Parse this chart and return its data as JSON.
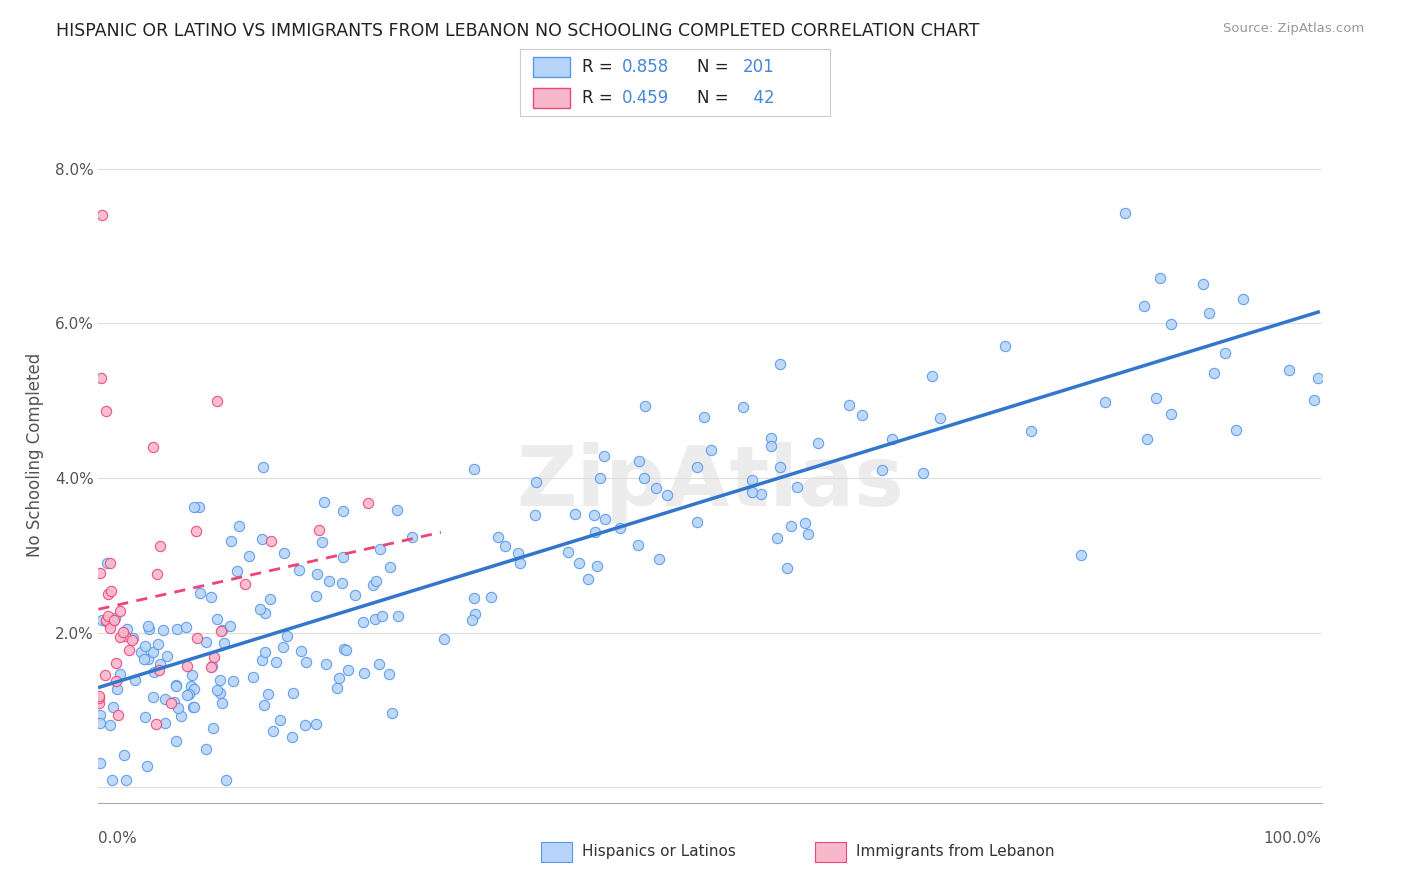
{
  "title": "HISPANIC OR LATINO VS IMMIGRANTS FROM LEBANON NO SCHOOLING COMPLETED CORRELATION CHART",
  "source": "Source: ZipAtlas.com",
  "ylabel": "No Schooling Completed",
  "ytick_vals": [
    0.0,
    0.02,
    0.04,
    0.06,
    0.08
  ],
  "ytick_labels": [
    "",
    "2.0%",
    "4.0%",
    "6.0%",
    "8.0%"
  ],
  "xlim": [
    0.0,
    1.0
  ],
  "ylim": [
    -0.002,
    0.088
  ],
  "series1": {
    "name": "Hispanics or Latinos",
    "R": 0.858,
    "N": 201,
    "fill_color": "#b8d4f8",
    "edge_color": "#5599ee",
    "line_color": "#3377cc"
  },
  "series2": {
    "name": "Immigrants from Lebanon",
    "R": 0.459,
    "N": 42,
    "fill_color": "#f8b8cc",
    "edge_color": "#ee4477",
    "line_color": "#ee4477"
  },
  "watermark_text": "ZipAtlas",
  "watermark_color": "#e0e0e0",
  "bg_color": "#ffffff",
  "grid_color": "#dddddd",
  "title_fontsize": 12.5,
  "axis_label_color": "#555555",
  "legend_value_color": "#4488dd"
}
